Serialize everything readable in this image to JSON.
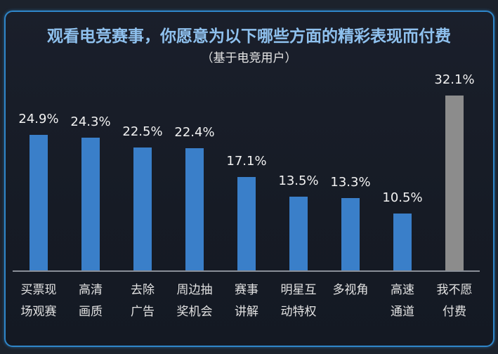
{
  "chart_data": {
    "type": "bar",
    "title": "观看电竞赛事，你愿意为以下哪些方面的精彩表现而付费",
    "subtitle": "（基于电竞用户）",
    "xlabel": "",
    "ylabel": "",
    "ylim": [
      0,
      35
    ],
    "grid": false,
    "legend": null,
    "categories": [
      "买票现场观赛",
      "高清画质",
      "去除广告",
      "周边抽奖机会",
      "赛事讲解",
      "明星互动特权",
      "多视角",
      "高速通道",
      "我不愿付费"
    ],
    "category_lines": [
      [
        "买票现",
        "场观赛"
      ],
      [
        "高清",
        "画质"
      ],
      [
        "去除",
        "广告"
      ],
      [
        "周边抽",
        "奖机会"
      ],
      [
        "赛事",
        "讲解"
      ],
      [
        "明星互",
        "动特权"
      ],
      [
        "多视角"
      ],
      [
        "高速",
        "通道"
      ],
      [
        "我不愿",
        "付费"
      ]
    ],
    "values": [
      24.9,
      24.3,
      22.5,
      22.4,
      17.1,
      13.5,
      13.3,
      10.5,
      32.1
    ],
    "value_labels": [
      "24.9%",
      "24.3%",
      "22.5%",
      "22.4%",
      "17.1%",
      "13.5%",
      "13.3%",
      "10.5%",
      "32.1%"
    ],
    "bar_colors": [
      "#3a7fc9",
      "#3a7fc9",
      "#3a7fc9",
      "#3a7fc9",
      "#3a7fc9",
      "#3a7fc9",
      "#3a7fc9",
      "#3a7fc9",
      "#8c8c8c"
    ]
  },
  "colors": {
    "background": "#1c222c",
    "frame_border": "#2f86c9",
    "title": "#8fc1ee",
    "bar_blue": "#3a7fc9",
    "bar_gray": "#8c8c8c",
    "text": "#f2f2f2"
  }
}
